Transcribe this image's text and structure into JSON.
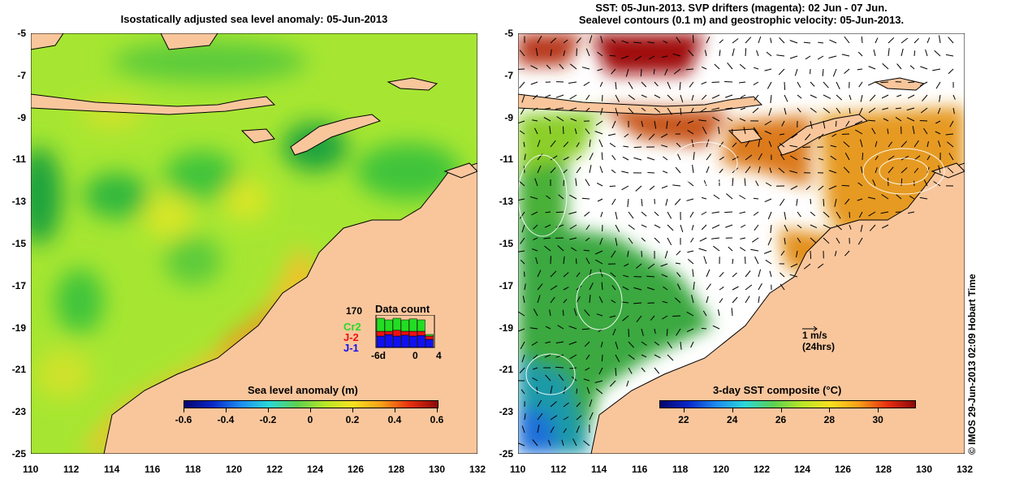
{
  "left_panel": {
    "title": "Isostatically adjusted sea level anomaly: 05-Jun-2013",
    "colorbar": {
      "label": "Sea level anomaly (m)",
      "ticks": [
        "-0.6",
        "-0.4",
        "-0.2",
        "0",
        "0.2",
        "0.4",
        "0.6"
      ],
      "range": [
        -0.6,
        0.6
      ]
    },
    "data_count": {
      "title": "Data count",
      "max_label": "170",
      "legend": [
        {
          "label": "Cr2",
          "color": "#22dd22"
        },
        {
          "label": "J-2",
          "color": "#ee1111"
        },
        {
          "label": "J-1",
          "color": "#1111ee"
        }
      ],
      "axis_labels": [
        "-6d",
        "0",
        "4"
      ],
      "bars_j1": [
        0.35,
        0.4,
        0.35,
        0.38,
        0.35,
        0.37,
        0.25
      ],
      "bars_j2": [
        0.15,
        0.1,
        0.18,
        0.12,
        0.15,
        0.13,
        0.1
      ],
      "bars_cr2": [
        0.4,
        0.35,
        0.37,
        0.35,
        0.38,
        0.35,
        0.05
      ]
    }
  },
  "right_panel": {
    "title_line1": "SST: 05-Jun-2013. SVP drifters (magenta): 02 Jun - 07 Jun.",
    "title_line2": "Sealevel contours (0.1 m) and geostrophic velocity: 05-Jun-2013.",
    "colorbar": {
      "label": "3-day SST composite (°C)",
      "ticks": [
        "22",
        "24",
        "26",
        "28",
        "30"
      ],
      "range": [
        21,
        31.5
      ]
    },
    "velocity_key": {
      "line1": "1 m/s",
      "line2": "(24hrs)"
    }
  },
  "axes": {
    "lon_ticks": [
      "110",
      "112",
      "114",
      "116",
      "118",
      "120",
      "122",
      "124",
      "126",
      "128",
      "130",
      "132"
    ],
    "lat_ticks": [
      "-5",
      "-7",
      "-9",
      "-11",
      "-13",
      "-15",
      "-17",
      "-19",
      "-21",
      "-23",
      "-25"
    ],
    "lon_range": [
      110,
      132
    ],
    "lat_range": [
      -25,
      -5
    ]
  },
  "credit": "© IMOS 29-Jun-2013 02:09 Hobart Time",
  "colors": {
    "land": "#f9c69c",
    "sla_base": "#a6e632",
    "sst_missing": "#ffffff"
  }
}
